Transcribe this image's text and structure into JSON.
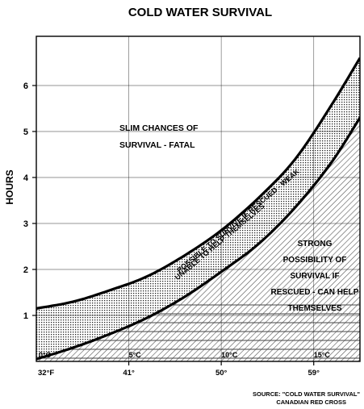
{
  "chart_data": {
    "type": "area",
    "title": "COLD WATER SURVIVAL",
    "ylabel": "HOURS",
    "xlabel": "",
    "ylim": [
      0,
      6.6
    ],
    "xlim": [
      0,
      17.5
    ],
    "grid": true,
    "yticks": [
      1,
      2,
      3,
      4,
      5,
      6
    ],
    "xticks_celsius": [
      {
        "x": 0,
        "label": "0°C"
      },
      {
        "x": 5,
        "label": "5°C"
      },
      {
        "x": 10,
        "label": "10°C"
      },
      {
        "x": 15,
        "label": "15°C"
      }
    ],
    "xticks_fahrenheit": [
      {
        "x": 0,
        "label": "32°F"
      },
      {
        "x": 5,
        "label": "41°"
      },
      {
        "x": 10,
        "label": "50°"
      },
      {
        "x": 15,
        "label": "59°"
      }
    ],
    "series": [
      {
        "x": [
          0,
          2,
          4,
          6,
          8,
          10,
          12,
          14,
          16,
          17.5
        ],
        "values": [
          1.15,
          1.3,
          1.55,
          1.85,
          2.3,
          2.85,
          3.55,
          4.4,
          5.6,
          6.6
        ]
      },
      {
        "x": [
          0,
          2,
          4,
          6,
          8,
          10,
          12,
          14,
          16,
          17.5
        ],
        "values": [
          0.05,
          0.3,
          0.6,
          0.95,
          1.4,
          1.95,
          2.55,
          3.35,
          4.35,
          5.3
        ]
      }
    ],
    "annotations": {
      "fatal": [
        "SLIM CHANCES OF",
        "SURVIVAL - FATAL"
      ],
      "weak": [
        "POSSIBLE TO SURVIVE IF RESCUED - WEAK",
        "UNABLE TO HELP THEMSELVES"
      ],
      "strong": [
        "STRONG",
        "POSSIBILITY OF",
        "SURVIVAL IF",
        "RESCUED - CAN HELP",
        "THEMSELVES"
      ]
    },
    "source": [
      "SOURCE: \"COLD WATER SURVIVAL\"",
      "CANADIAN RED CROSS"
    ]
  }
}
